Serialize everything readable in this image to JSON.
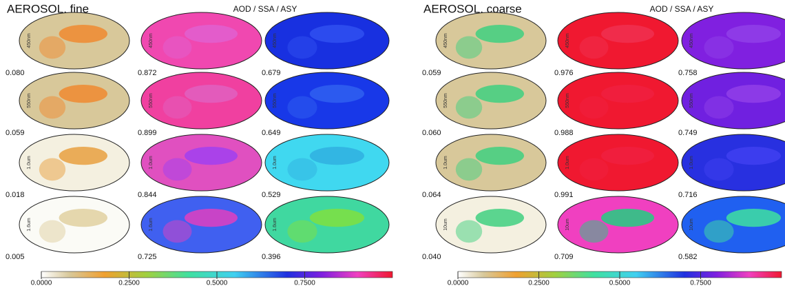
{
  "panels": [
    {
      "title": "AEROSOL, fine",
      "subtitle": "AOD / SSA / ASY",
      "wavelengths": [
        "450nm",
        "550nm",
        "1.0um",
        "1.6um"
      ],
      "columns": [
        {
          "values": [
            "0.080",
            "0.059",
            "0.018",
            "0.005"
          ]
        },
        {
          "values": [
            "0.872",
            "0.899",
            "0.844",
            "0.725"
          ]
        },
        {
          "values": [
            "0.679",
            "0.649",
            "0.529",
            "0.396"
          ]
        }
      ],
      "colorbar_ticks": [
        "0.0000",
        "0.2500",
        "0.5000",
        "0.7500"
      ]
    },
    {
      "title": "AEROSOL, coarse",
      "subtitle": "AOD / SSA / ASY",
      "wavelengths": [
        "450nm",
        "550nm",
        "1.0um",
        "10um"
      ],
      "columns": [
        {
          "values": [
            "0.059",
            "0.060",
            "0.064",
            "0.040"
          ]
        },
        {
          "values": [
            "0.976",
            "0.988",
            "0.991",
            "0.709"
          ]
        },
        {
          "values": [
            "0.758",
            "0.749",
            "0.716",
            "0.582"
          ]
        }
      ],
      "colorbar_ticks": [
        "0.0000",
        "0.2500",
        "0.5000",
        "0.7500"
      ]
    }
  ]
}
